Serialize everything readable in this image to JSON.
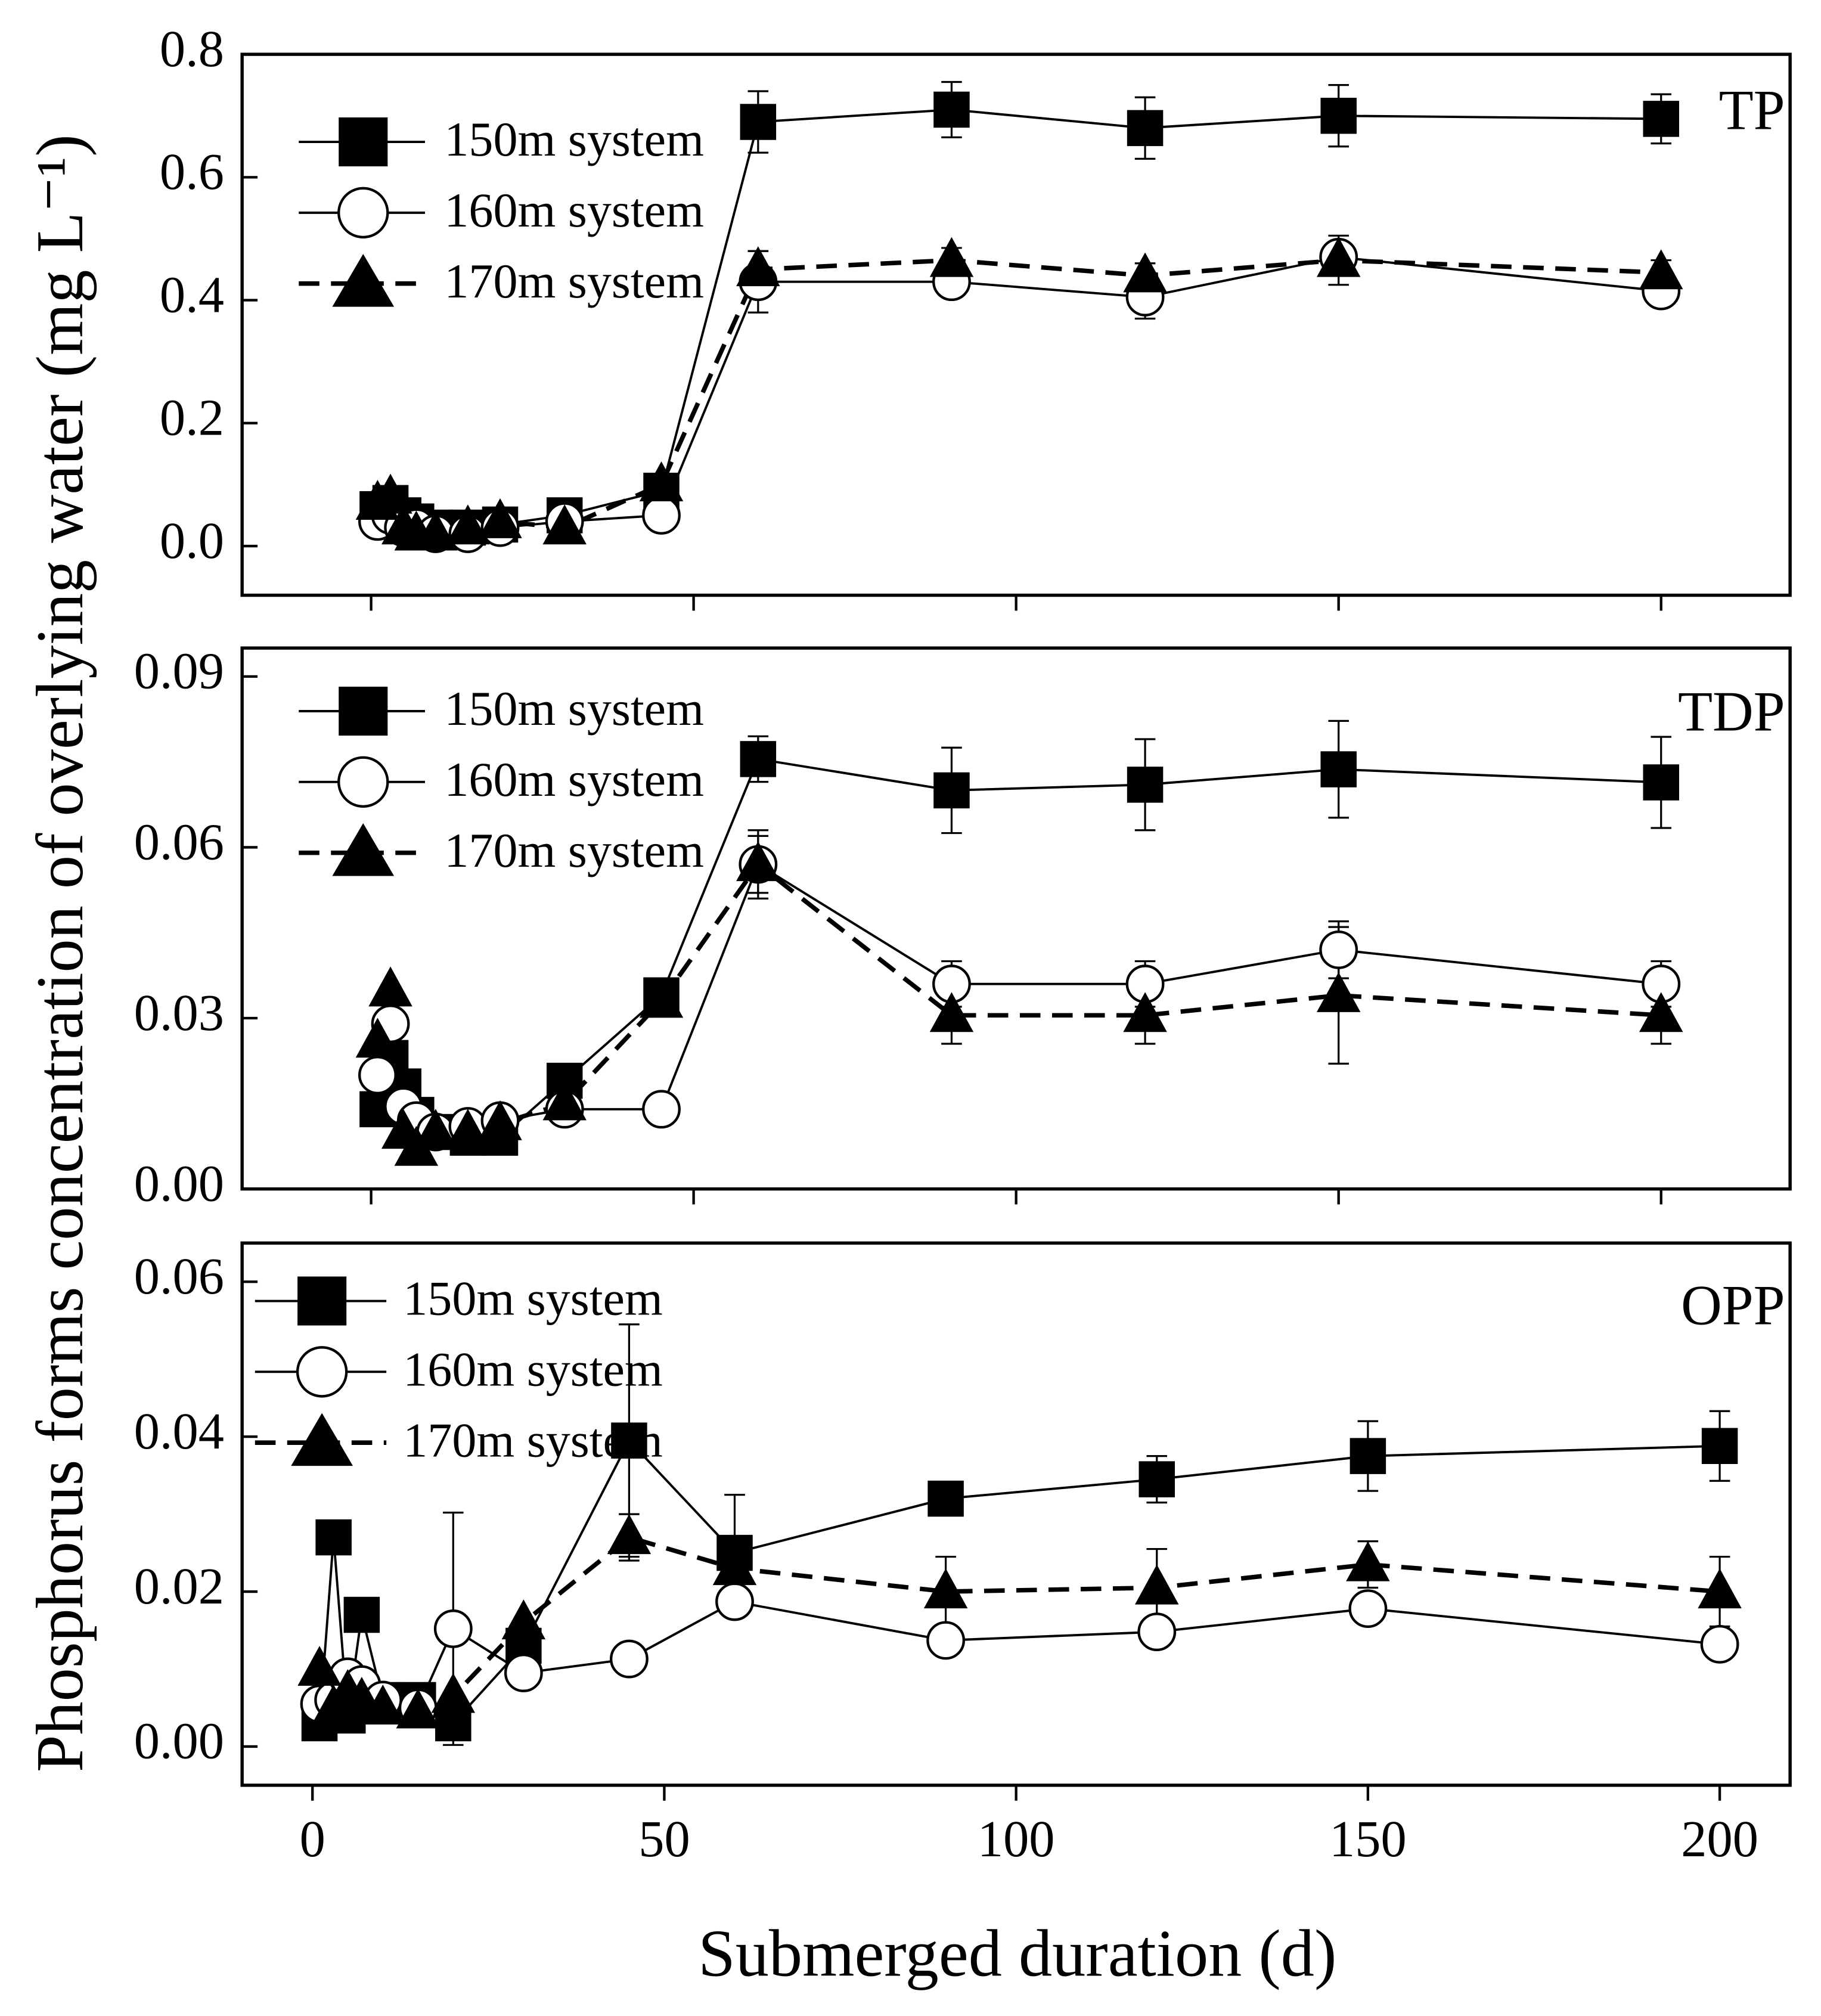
{
  "y_label": "Phosphorus forms concentration of overlying water (mg L⁻¹)",
  "x_label": "Submerged duration (d)",
  "chart_data": [
    {
      "type": "line",
      "title": "TP",
      "x": [
        1,
        3,
        5,
        7,
        10,
        15,
        20,
        30,
        45,
        60,
        90,
        120,
        150,
        200
      ],
      "xlim": [
        -20,
        220
      ],
      "xticks": [
        0,
        50,
        100,
        150,
        200
      ],
      "show_xtick_labels": false,
      "ylim": [
        -0.08,
        0.8
      ],
      "yticks": [
        {
          "value": 0,
          "label": "0.0"
        },
        0.2,
        0.4,
        0.6,
        0.8
      ],
      "series": [
        {
          "name": "150m system",
          "color": "#000000",
          "marker": "square",
          "dash": false,
          "values": [
            0.06,
            0.07,
            0.05,
            0.04,
            0.03,
            0.03,
            0.035,
            0.05,
            0.09,
            0.69,
            0.71,
            0.68,
            0.7,
            0.695
          ],
          "errors": [
            null,
            null,
            null,
            null,
            null,
            null,
            null,
            null,
            null,
            0.05,
            0.045,
            0.05,
            0.05,
            0.04
          ]
        },
        {
          "name": "160m system",
          "color": "#000000",
          "marker": "circle",
          "dash": false,
          "values": [
            0.04,
            0.05,
            0.03,
            0.03,
            0.02,
            0.02,
            0.03,
            0.04,
            0.05,
            0.43,
            0.43,
            0.405,
            0.47,
            0.415
          ],
          "errors": [
            null,
            null,
            null,
            null,
            null,
            null,
            null,
            null,
            null,
            0.05,
            0.02,
            0.035,
            0.02,
            0.02
          ]
        },
        {
          "name": "170m system",
          "color": "#000000",
          "marker": "triangle",
          "dash": true,
          "values": [
            0.07,
            0.08,
            0.03,
            0.02,
            0.02,
            0.03,
            0.04,
            0.03,
            0.1,
            0.45,
            0.465,
            0.44,
            0.465,
            0.445
          ],
          "errors": [
            null,
            null,
            null,
            null,
            null,
            null,
            null,
            null,
            null,
            0.03,
            0.02,
            0.02,
            0.04,
            0.02
          ]
        }
      ]
    },
    {
      "type": "line",
      "title": "TDP",
      "x": [
        1,
        3,
        5,
        7,
        10,
        15,
        20,
        30,
        45,
        60,
        90,
        120,
        150,
        200
      ],
      "xlim": [
        -20,
        220
      ],
      "xticks": [
        0,
        50,
        100,
        150,
        200
      ],
      "show_xtick_labels": false,
      "ylim": [
        0,
        0.095
      ],
      "yticks": [
        {
          "value": 0,
          "label": "0.00"
        },
        0.03,
        0.06,
        0.09
      ],
      "series": [
        {
          "name": "150m system",
          "color": "#000000",
          "marker": "square",
          "dash": false,
          "values": [
            0.014,
            0.023,
            0.018,
            0.013,
            0.01,
            0.009,
            0.009,
            0.019,
            0.034,
            0.0755,
            0.07,
            0.071,
            0.0737,
            0.0714
          ],
          "errors": [
            null,
            null,
            null,
            null,
            null,
            null,
            null,
            null,
            null,
            0.004,
            0.0075,
            0.008,
            0.0085,
            0.008
          ]
        },
        {
          "name": "160m system",
          "color": "#000000",
          "marker": "circle",
          "dash": false,
          "values": [
            0.02,
            0.029,
            0.0145,
            0.012,
            0.01,
            0.011,
            0.012,
            0.014,
            0.014,
            0.057,
            0.036,
            0.036,
            0.042,
            0.036
          ],
          "errors": [
            null,
            null,
            null,
            null,
            null,
            null,
            null,
            null,
            null,
            0.005,
            0.004,
            0.004,
            0.005,
            0.004
          ]
        },
        {
          "name": "170m system",
          "color": "#000000",
          "marker": "triangle",
          "dash": true,
          "values": [
            0.026,
            0.035,
            0.01,
            0.007,
            0.01,
            0.01,
            0.0115,
            0.015,
            0.033,
            0.057,
            0.0305,
            0.0305,
            0.034,
            0.0305
          ],
          "errors": [
            null,
            null,
            null,
            null,
            null,
            null,
            null,
            null,
            null,
            0.006,
            0.005,
            0.005,
            0.012,
            0.005
          ]
        }
      ]
    },
    {
      "type": "line",
      "title": "OPP",
      "x": [
        1,
        3,
        5,
        7,
        10,
        15,
        20,
        30,
        45,
        60,
        90,
        120,
        150,
        200
      ],
      "xlim": [
        -10,
        210
      ],
      "xticks": [
        0,
        50,
        100,
        150,
        200
      ],
      "show_xtick_labels": true,
      "ylim": [
        -0.005,
        0.065
      ],
      "yticks": [
        {
          "value": 0,
          "label": "0.00"
        },
        0.02,
        0.04,
        0.06
      ],
      "series": [
        {
          "name": "150m system",
          "color": "#000000",
          "marker": "square",
          "dash": false,
          "values": [
            0.003,
            0.027,
            0.004,
            0.017,
            0.006,
            0.006,
            0.003,
            0.013,
            0.0395,
            0.025,
            0.032,
            0.0345,
            0.0375,
            0.0388
          ],
          "errors": [
            null,
            null,
            null,
            null,
            null,
            null,
            null,
            null,
            0.015,
            0.0075,
            0.002,
            0.003,
            0.0045,
            0.0045
          ]
        },
        {
          "name": "160m system",
          "color": "#000000",
          "marker": "circle",
          "dash": false,
          "values": [
            0.0055,
            0.006,
            0.009,
            0.008,
            0.006,
            0.005,
            0.0152,
            0.0095,
            0.0113,
            0.0187,
            0.0137,
            0.0148,
            0.0178,
            0.0132
          ],
          "errors": [
            null,
            null,
            null,
            null,
            null,
            null,
            0.015,
            null,
            null,
            null,
            0.0015,
            0.0015,
            null,
            0.0015
          ]
        },
        {
          "name": "170m system",
          "color": "#000000",
          "marker": "triangle",
          "dash": true,
          "values": [
            0.01,
            0.005,
            0.007,
            0.006,
            0.005,
            0.0045,
            0.0065,
            0.016,
            0.027,
            0.023,
            0.02,
            0.0205,
            0.0235,
            0.02
          ],
          "errors": [
            null,
            null,
            null,
            null,
            null,
            null,
            null,
            null,
            0.003,
            null,
            0.0045,
            0.005,
            0.003,
            0.0045
          ]
        }
      ]
    }
  ]
}
